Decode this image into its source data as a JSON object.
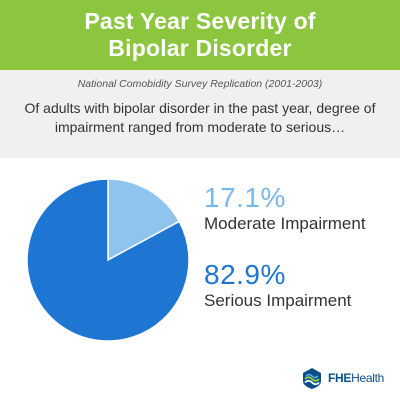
{
  "colors": {
    "header_bg": "#8cc63f",
    "serious": "#1e76d2",
    "moderate": "#8ec4ee",
    "moderate_text": "#7ab8ea",
    "serious_text": "#1e76d2",
    "subbar_bg": "#f0f0f0"
  },
  "header": {
    "title_line1": "Past Year Severity of",
    "title_line2": "Bipolar Disorder"
  },
  "source": "National Comobidity Survey Replication (2001-2003)",
  "intro": "Of adults with bipolar disorder in the past year, degree of impairment ranged from moderate to serious…",
  "chart_data": {
    "type": "pie",
    "title": "Past Year Severity of Bipolar Disorder",
    "slices": [
      {
        "label": "Moderate Impairment",
        "value": 17.1,
        "display": "17.1%",
        "color": "#8ec4ee"
      },
      {
        "label": "Serious Impairment",
        "value": 82.9,
        "display": "82.9%",
        "color": "#1e76d2"
      }
    ],
    "start_angle": "12 o'clock, clockwise",
    "legend": "right"
  },
  "logo": {
    "brand_a": "FHE",
    "brand_b": "Health",
    "icon": "fhe-wave-logo-icon"
  }
}
